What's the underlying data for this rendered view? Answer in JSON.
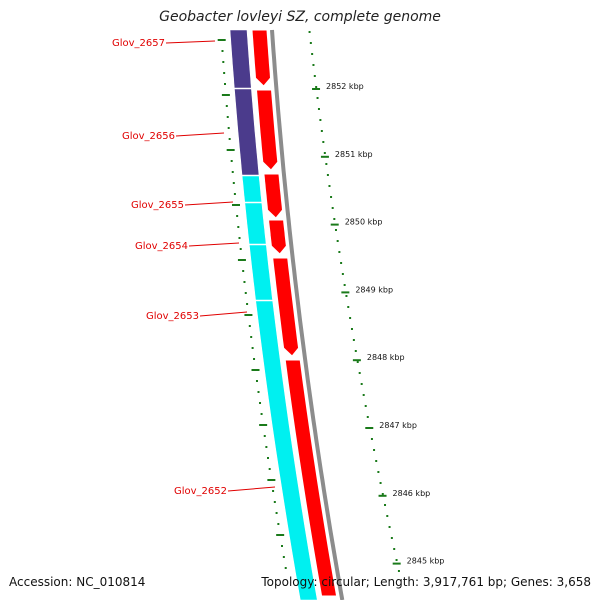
{
  "title": "Geobacter lovleyi SZ, complete genome",
  "footer": {
    "accession": "Accession: NC_010814",
    "summary": "Topology: circular; Length: 3,917,761 bp; Genes: 3,658"
  },
  "genes": [
    {
      "label": "Glov_2657",
      "track_color": "#4b3b8c"
    },
    {
      "label": "Glov_2656",
      "track_color": "#4b3b8c"
    },
    {
      "label": "Glov_2655",
      "track_color": "#00f0f0"
    },
    {
      "label": "Glov_2654",
      "track_color": "#00f0f0"
    },
    {
      "label": "Glov_2653",
      "track_color": "#00f0f0"
    },
    {
      "label": "Glov_2652",
      "track_color": "#00f0f0"
    }
  ],
  "ticks": [
    "2852 kbp",
    "2851 kbp",
    "2850 kbp",
    "2849 kbp",
    "2848 kbp",
    "2847 kbp",
    "2846 kbp",
    "2845 kbp"
  ],
  "colors": {
    "gene_arrow": "#ff0000",
    "gene_label": "#e00000",
    "backbone": "#8c8c8c",
    "tick_green": "#1a7a1a",
    "cog_purple": "#4b3b8c",
    "cog_cyan": "#00f0f0"
  }
}
